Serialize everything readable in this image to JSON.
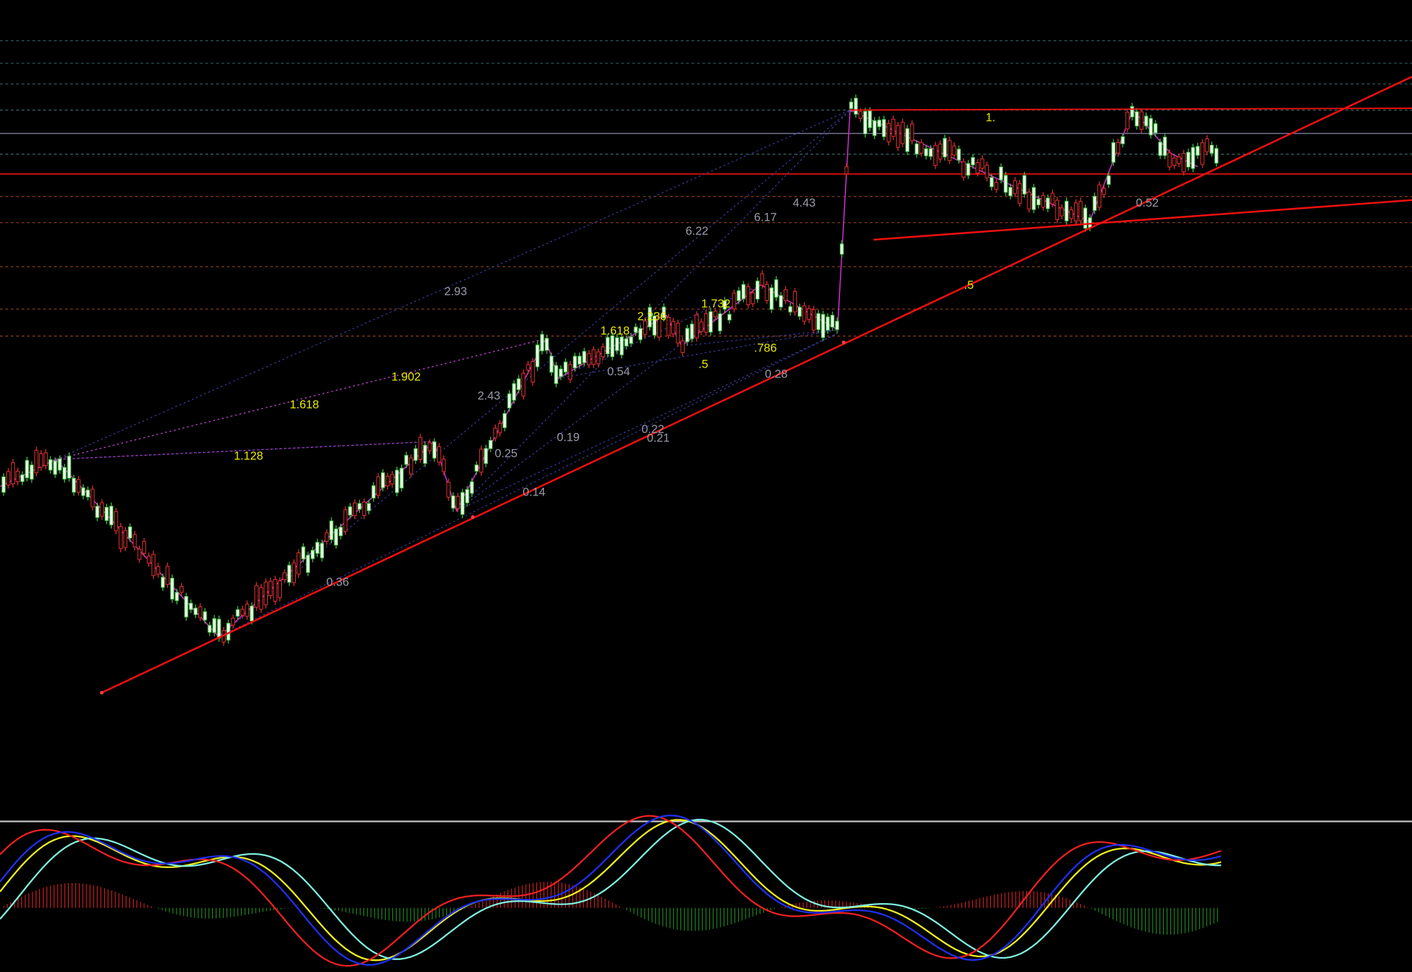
{
  "fib_labels": [
    "1.",
    "0.52",
    "4.43",
    "6.17",
    "6.22",
    "2.93",
    ".5",
    "1.732",
    "2.236",
    "1.618",
    ".786",
    "1.902",
    "0.54",
    ".5",
    "0.28",
    "1.618",
    "2.43",
    "0.22",
    "0.21",
    "0.19",
    "0.25",
    "1.128",
    "0.14",
    "0.36"
  ]
}
